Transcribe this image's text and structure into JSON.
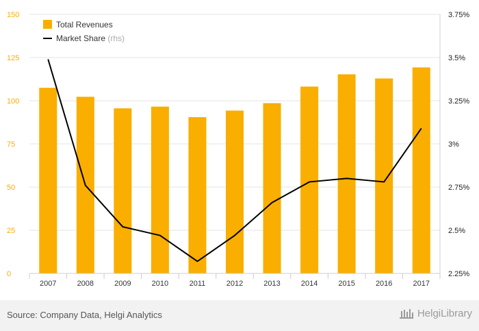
{
  "chart_data": {
    "type": "bar",
    "categories": [
      "2007",
      "2008",
      "2009",
      "2010",
      "2011",
      "2012",
      "2013",
      "2014",
      "2015",
      "2016",
      "2017"
    ],
    "series": [
      {
        "name": "Total Revenues",
        "type": "bar",
        "axis": "left",
        "color": "#f9ae00",
        "values": [
          107.5,
          102.3,
          95.6,
          96.6,
          90.5,
          94.3,
          98.6,
          108.2,
          115.3,
          112.9,
          119.3
        ]
      },
      {
        "name": "Market Share",
        "axis_note": "(rhs)",
        "type": "line",
        "axis": "right",
        "color": "#000000",
        "values": [
          3.49,
          2.76,
          2.52,
          2.47,
          2.32,
          2.47,
          2.66,
          2.78,
          2.8,
          2.78,
          3.09
        ]
      }
    ],
    "y_left": {
      "min": 0,
      "max": 150,
      "ticks": [
        0,
        25,
        50,
        75,
        100,
        125,
        150
      ],
      "tick_labels": [
        "0",
        "25",
        "50",
        "75",
        "100",
        "125",
        "150"
      ],
      "color": "#f9ae00"
    },
    "y_right": {
      "min": 2.25,
      "max": 3.75,
      "ticks": [
        2.25,
        2.5,
        2.75,
        3,
        3.25,
        3.5,
        3.75
      ],
      "tick_labels": [
        "2.25%",
        "2.5%",
        "2.75%",
        "3%",
        "3.25%",
        "3.5%",
        "3.75%"
      ]
    },
    "grid": true,
    "legend": "top-left"
  },
  "footer": {
    "source": "Source: Company Data, Helgi Analytics",
    "brand": "HelgiLibrary"
  }
}
